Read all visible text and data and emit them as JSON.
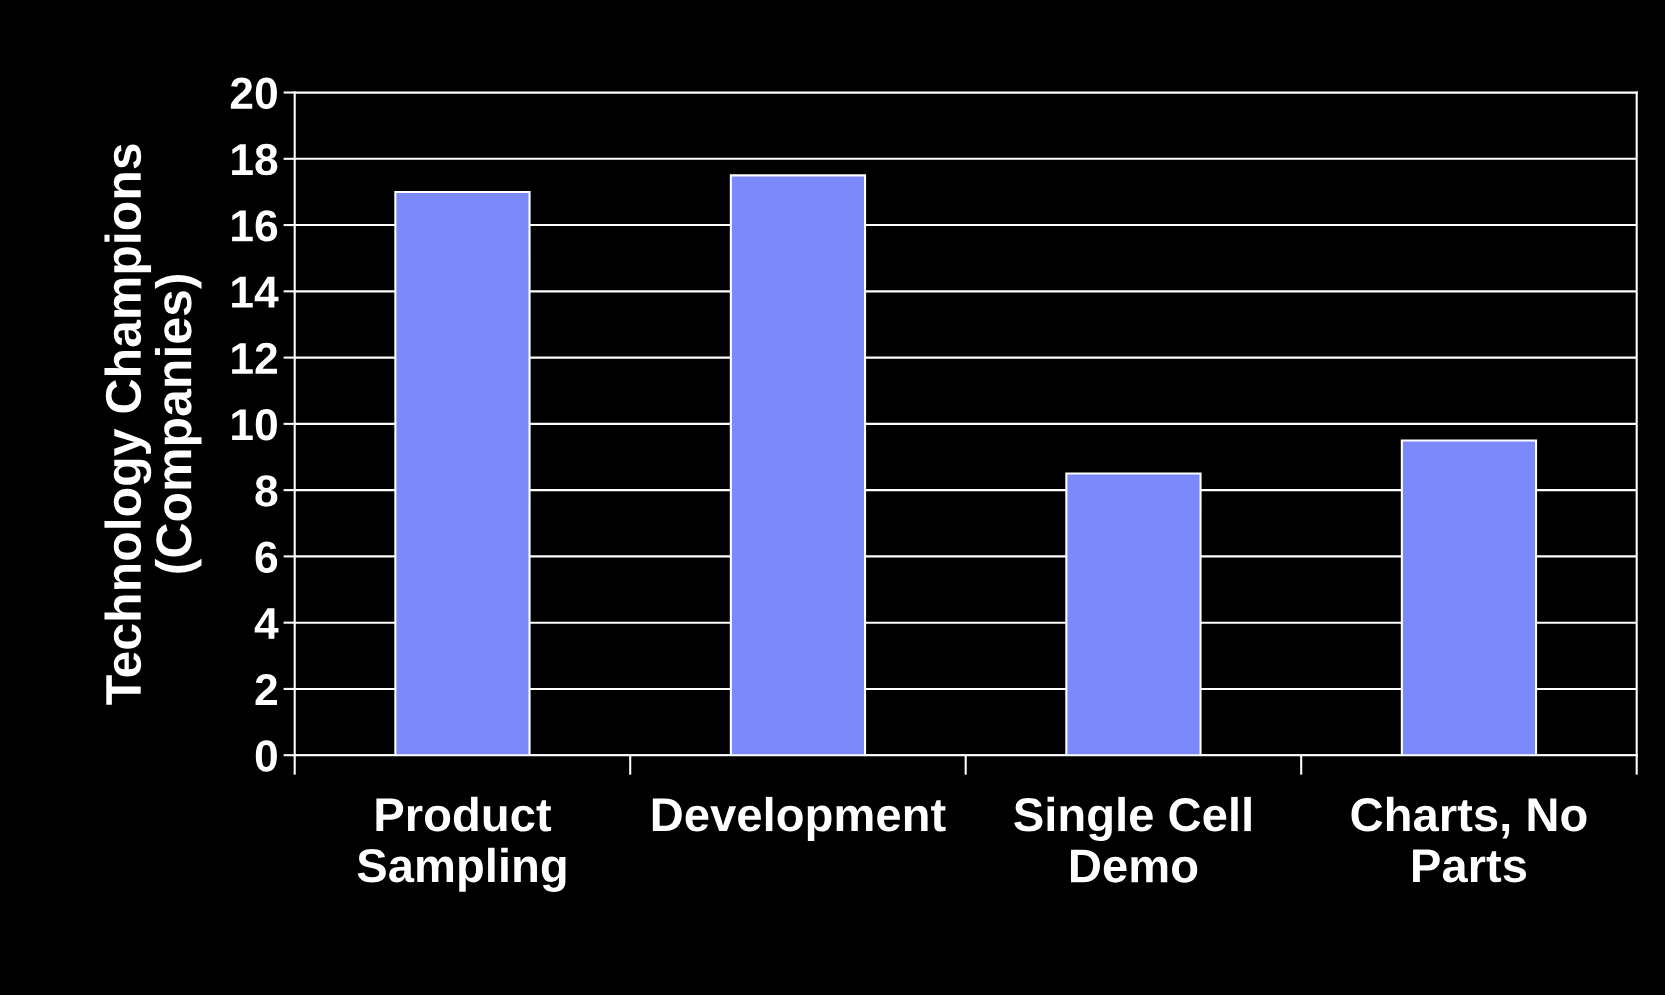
{
  "chart_data": {
    "type": "bar",
    "ylabel": "Technology Champions\n(Companies)",
    "categories": [
      "Product\nSampling",
      "Development",
      "Single Cell\nDemo",
      "Charts, No\nParts"
    ],
    "values": [
      17,
      17.5,
      8.5,
      9.5
    ],
    "color": "#7b89fa",
    "ylim": [
      0,
      20
    ],
    "yticks": [
      0,
      2,
      4,
      6,
      8,
      10,
      12,
      14,
      16,
      18,
      20
    ],
    "grid": "y"
  }
}
